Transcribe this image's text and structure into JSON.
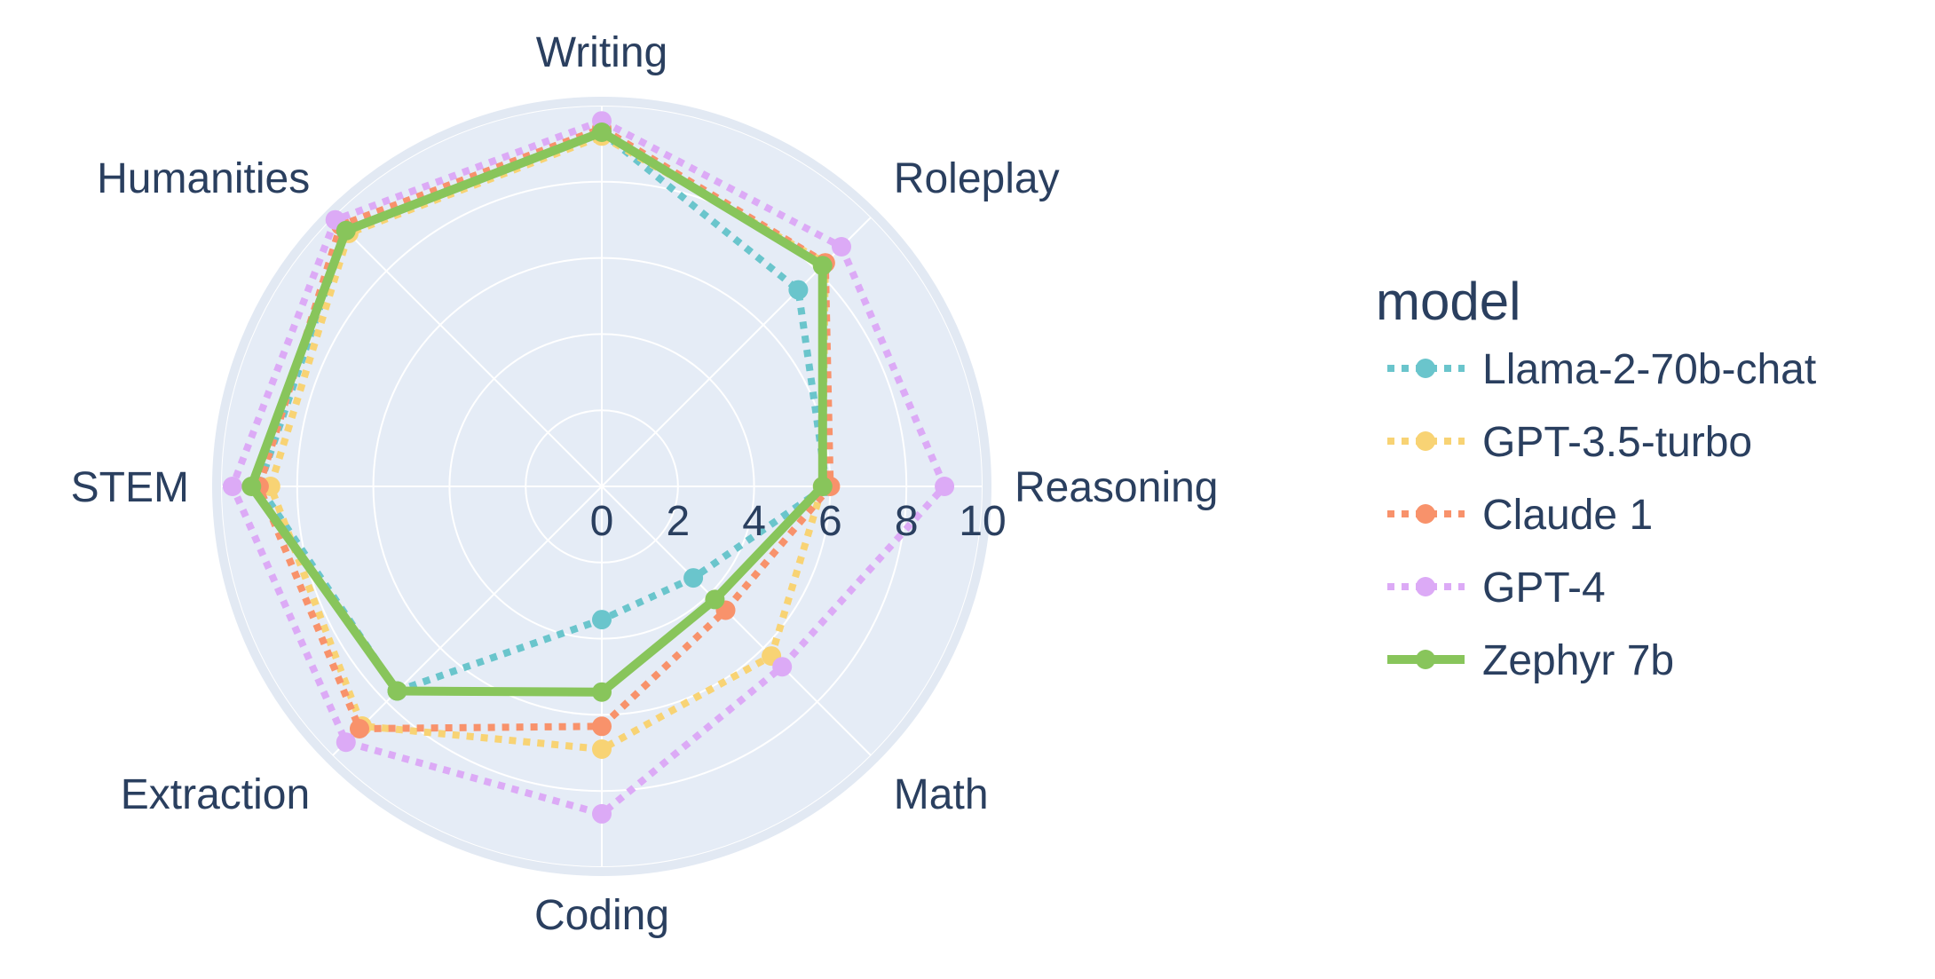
{
  "chart_data": {
    "type": "radar",
    "categories": [
      "Writing",
      "Roleplay",
      "Reasoning",
      "Math",
      "Coding",
      "Extraction",
      "STEM",
      "Humanities"
    ],
    "radial_ticks": [
      "0",
      "2",
      "4",
      "6",
      "8",
      "10"
    ],
    "rlim": [
      0,
      10
    ],
    "grid": true,
    "legend": {
      "title": "model",
      "position": "right"
    },
    "series": [
      {
        "name": "Llama-2-70b-chat",
        "values": [
          9.3,
          7.3,
          5.9,
          3.4,
          3.5,
          7.6,
          9.0,
          9.5
        ],
        "color": "#6ac5cc",
        "line_style": "dotted"
      },
      {
        "name": "GPT-3.5-turbo",
        "values": [
          9.2,
          8.3,
          5.8,
          6.3,
          6.9,
          8.9,
          8.7,
          9.4
        ],
        "color": "#f8d374",
        "line_style": "dotted"
      },
      {
        "name": "Claude 1",
        "values": [
          9.4,
          8.3,
          6.0,
          4.6,
          6.3,
          9.0,
          9.0,
          9.7
        ],
        "color": "#f8926b",
        "line_style": "dotted"
      },
      {
        "name": "GPT-4",
        "values": [
          9.6,
          8.9,
          9.0,
          6.7,
          8.6,
          9.5,
          9.7,
          9.9
        ],
        "color": "#dcaaf6",
        "line_style": "dotted"
      },
      {
        "name": "Zephyr 7b",
        "values": [
          9.3,
          8.2,
          5.8,
          4.2,
          5.4,
          7.6,
          9.2,
          9.5
        ],
        "color": "#88c55b",
        "line_style": "solid"
      }
    ]
  },
  "colors": {
    "plot_background": "#e5ecf6",
    "grid": "#ffffff",
    "text": "#2a3f5f"
  }
}
